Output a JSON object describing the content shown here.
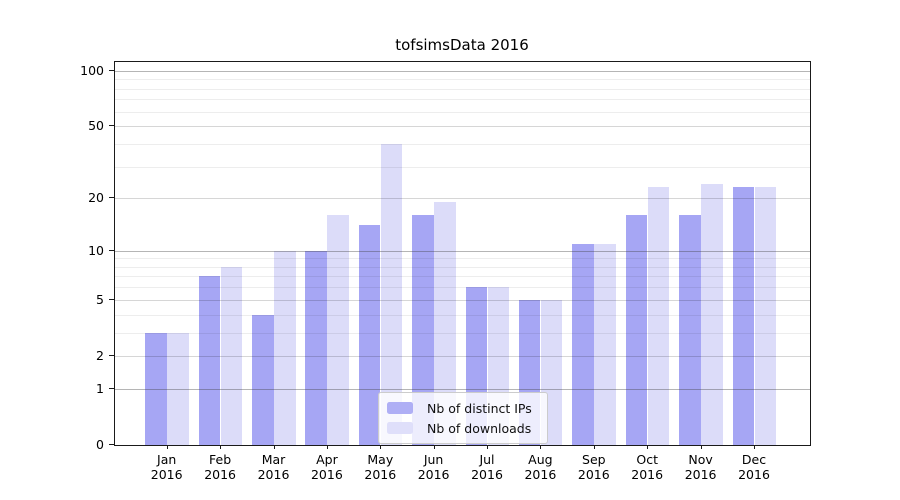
{
  "chart_data": {
    "type": "bar",
    "title": "tofsimsData 2016",
    "categories": [
      "Jan",
      "Feb",
      "Mar",
      "Apr",
      "May",
      "Jun",
      "Jul",
      "Aug",
      "Sep",
      "Oct",
      "Nov",
      "Dec"
    ],
    "category_year": "2016",
    "series": [
      {
        "name": "Nb of distinct IPs",
        "color": "#a6a6f4",
        "values": [
          3,
          7,
          4,
          10,
          14,
          16,
          6,
          5,
          11,
          16,
          16,
          23
        ]
      },
      {
        "name": "Nb of downloads",
        "color": "#dcdcf9",
        "values": [
          3,
          8,
          10,
          16,
          40,
          19,
          6,
          5,
          11,
          23,
          24,
          23
        ]
      }
    ],
    "y_axis": {
      "scale": "log1p",
      "tick_labels": [
        0,
        1,
        2,
        5,
        10,
        20,
        50,
        100
      ],
      "minor_gridlines": [
        3,
        4,
        6,
        7,
        8,
        9,
        30,
        40,
        60,
        70,
        80,
        90
      ],
      "decade_gridlines": [
        1,
        10,
        100
      ],
      "ylim": [
        0,
        112
      ]
    },
    "legend": {
      "position": "inside-bottom-center"
    },
    "grid": "on",
    "colors": {
      "distinct_ips_bar": "#a6a6f4",
      "downloads_bar": "#dcdcf9",
      "axis": "#1a1a1a",
      "background": "#ffffff"
    }
  }
}
